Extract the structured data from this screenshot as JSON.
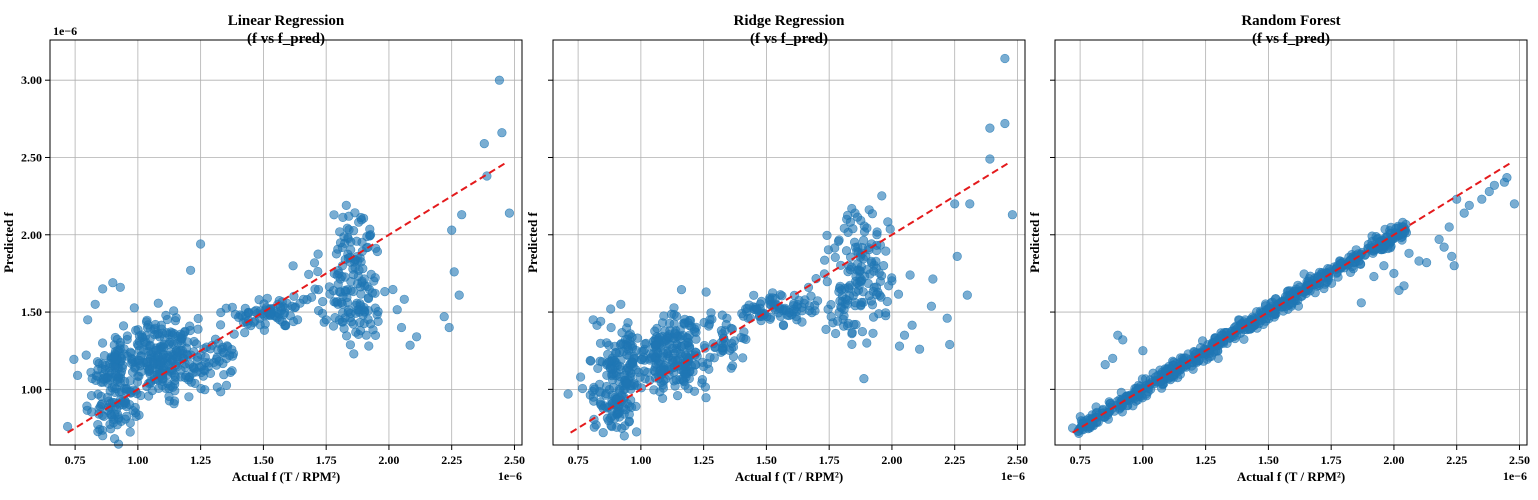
{
  "colors": {
    "points": "#1f77b4",
    "reference_line": "#e41a1c",
    "grid": "#b0b0b0",
    "axes": "#000000"
  },
  "chart_data": [
    {
      "type": "scatter",
      "title": "Linear Regression\n(f vs f_pred)",
      "xlabel": "Actual f (T / RPM²)",
      "ylabel": "Predicted f",
      "x_offset_text": "1e−6",
      "y_offset_text": "1e−6",
      "xlim": [
        0.65,
        2.53
      ],
      "ylim": [
        0.64,
        3.26
      ],
      "xticks": [
        0.75,
        1.0,
        1.25,
        1.5,
        1.75,
        2.0,
        2.25,
        2.5
      ],
      "yticks": [
        1.0,
        1.5,
        2.0,
        2.5,
        3.0
      ],
      "grid": true,
      "reference_line": [
        [
          0.72,
          0.72
        ],
        [
          2.46,
          2.46
        ]
      ],
      "clusters": [
        {
          "cx": 0.92,
          "cy": 1.15,
          "sx": 0.05,
          "sy": 0.12,
          "n": 120
        },
        {
          "cx": 0.9,
          "cy": 0.86,
          "sx": 0.05,
          "sy": 0.07,
          "n": 60
        },
        {
          "cx": 1.12,
          "cy": 1.2,
          "sx": 0.07,
          "sy": 0.12,
          "n": 220
        },
        {
          "cx": 1.32,
          "cy": 1.2,
          "sx": 0.05,
          "sy": 0.09,
          "n": 40
        },
        {
          "cx": 1.52,
          "cy": 1.5,
          "sx": 0.08,
          "sy": 0.06,
          "n": 80
        },
        {
          "cx": 1.85,
          "cy": 1.6,
          "sx": 0.08,
          "sy": 0.15,
          "n": 110
        },
        {
          "cx": 1.87,
          "cy": 1.95,
          "sx": 0.05,
          "sy": 0.12,
          "n": 45
        }
      ],
      "points": [
        [
          0.72,
          0.76
        ],
        [
          0.76,
          1.09
        ],
        [
          0.8,
          1.45
        ],
        [
          0.83,
          1.55
        ],
        [
          0.86,
          1.65
        ],
        [
          0.9,
          1.69
        ],
        [
          0.93,
          1.66
        ],
        [
          0.86,
          0.7
        ],
        [
          1.25,
          1.94
        ],
        [
          1.21,
          1.77
        ],
        [
          1.75,
          1.45
        ],
        [
          1.83,
          2.19
        ],
        [
          1.84,
          2.12
        ],
        [
          1.91,
          1.35
        ],
        [
          2.05,
          1.4
        ],
        [
          2.11,
          1.34
        ],
        [
          2.22,
          1.47
        ],
        [
          2.24,
          1.4
        ],
        [
          2.25,
          2.03
        ],
        [
          2.26,
          1.76
        ],
        [
          2.28,
          1.61
        ],
        [
          2.29,
          2.13
        ],
        [
          2.38,
          2.59
        ],
        [
          2.39,
          2.38
        ],
        [
          2.44,
          3.0
        ],
        [
          2.45,
          2.66
        ],
        [
          2.48,
          2.14
        ]
      ]
    },
    {
      "type": "scatter",
      "title": "Ridge Regression\n(f vs f_pred)",
      "xlabel": "Actual f (T / RPM²)",
      "ylabel": "Predicted f",
      "x_offset_text": "1e−6",
      "xlim": [
        0.65,
        2.53
      ],
      "ylim": [
        0.64,
        3.26
      ],
      "xticks": [
        0.75,
        1.0,
        1.25,
        1.5,
        1.75,
        2.0,
        2.25,
        2.5
      ],
      "yticks": [
        1.0,
        1.5,
        2.0,
        2.5,
        3.0
      ],
      "show_yticklabels": false,
      "grid": true,
      "reference_line": [
        [
          0.72,
          0.72
        ],
        [
          2.46,
          2.46
        ]
      ],
      "clusters": [
        {
          "cx": 0.92,
          "cy": 1.15,
          "sx": 0.05,
          "sy": 0.12,
          "n": 120
        },
        {
          "cx": 0.9,
          "cy": 0.88,
          "sx": 0.05,
          "sy": 0.07,
          "n": 60
        },
        {
          "cx": 1.12,
          "cy": 1.22,
          "sx": 0.07,
          "sy": 0.13,
          "n": 220
        },
        {
          "cx": 1.35,
          "cy": 1.32,
          "sx": 0.05,
          "sy": 0.08,
          "n": 40
        },
        {
          "cx": 1.55,
          "cy": 1.52,
          "sx": 0.08,
          "sy": 0.06,
          "n": 80
        },
        {
          "cx": 1.86,
          "cy": 1.62,
          "sx": 0.08,
          "sy": 0.15,
          "n": 110
        },
        {
          "cx": 1.88,
          "cy": 1.95,
          "sx": 0.05,
          "sy": 0.12,
          "n": 45
        }
      ],
      "points": [
        [
          0.71,
          0.97
        ],
        [
          0.76,
          1.08
        ],
        [
          0.81,
          1.45
        ],
        [
          0.84,
          1.44
        ],
        [
          0.88,
          1.52
        ],
        [
          0.92,
          1.55
        ],
        [
          0.85,
          0.72
        ],
        [
          1.26,
          1.63
        ],
        [
          1.84,
          2.17
        ],
        [
          1.82,
          2.1
        ],
        [
          1.9,
          1.3
        ],
        [
          2.05,
          1.35
        ],
        [
          2.03,
          1.28
        ],
        [
          2.11,
          1.26
        ],
        [
          2.22,
          1.46
        ],
        [
          2.23,
          1.29
        ],
        [
          2.25,
          2.2
        ],
        [
          2.26,
          1.86
        ],
        [
          2.3,
          1.61
        ],
        [
          2.31,
          2.2
        ],
        [
          2.39,
          2.69
        ],
        [
          2.39,
          2.49
        ],
        [
          2.45,
          3.14
        ],
        [
          2.45,
          2.72
        ],
        [
          2.48,
          2.13
        ]
      ]
    },
    {
      "type": "scatter",
      "title": "Random Forest\n(f vs f_pred)",
      "xlabel": "Actual f (T / RPM²)",
      "ylabel": "Predicted f",
      "x_offset_text": "1e−6",
      "xlim": [
        0.65,
        2.53
      ],
      "ylim": [
        0.64,
        3.26
      ],
      "xticks": [
        0.75,
        1.0,
        1.25,
        1.5,
        1.75,
        2.0,
        2.25,
        2.5
      ],
      "yticks": [
        1.0,
        1.5,
        2.0,
        2.5,
        3.0
      ],
      "show_yticklabels": false,
      "grid": true,
      "reference_line": [
        [
          0.72,
          0.72
        ],
        [
          2.46,
          2.46
        ]
      ],
      "diagonal_band": {
        "x_from": 0.74,
        "x_to": 2.05,
        "sd": 0.03,
        "n": 650
      },
      "points": [
        [
          0.72,
          0.75
        ],
        [
          0.76,
          0.78
        ],
        [
          0.9,
          1.35
        ],
        [
          0.92,
          1.32
        ],
        [
          0.85,
          1.16
        ],
        [
          0.88,
          1.2
        ],
        [
          1.0,
          1.25
        ],
        [
          1.2,
          1.13
        ],
        [
          1.3,
          1.2
        ],
        [
          1.48,
          1.42
        ],
        [
          1.65,
          1.62
        ],
        [
          1.87,
          1.56
        ],
        [
          1.92,
          1.73
        ],
        [
          1.96,
          1.8
        ],
        [
          2.0,
          1.75
        ],
        [
          2.02,
          1.64
        ],
        [
          2.04,
          1.67
        ],
        [
          2.06,
          1.88
        ],
        [
          2.1,
          1.83
        ],
        [
          2.13,
          1.82
        ],
        [
          2.22,
          2.05
        ],
        [
          2.23,
          1.86
        ],
        [
          2.24,
          1.8
        ],
        [
          2.25,
          2.23
        ],
        [
          2.28,
          2.14
        ],
        [
          2.3,
          2.19
        ],
        [
          2.38,
          2.28
        ],
        [
          2.4,
          2.32
        ],
        [
          2.44,
          2.34
        ],
        [
          2.45,
          2.37
        ],
        [
          2.48,
          2.2
        ],
        [
          2.35,
          2.23
        ],
        [
          2.18,
          1.97
        ],
        [
          2.2,
          1.92
        ]
      ]
    }
  ]
}
